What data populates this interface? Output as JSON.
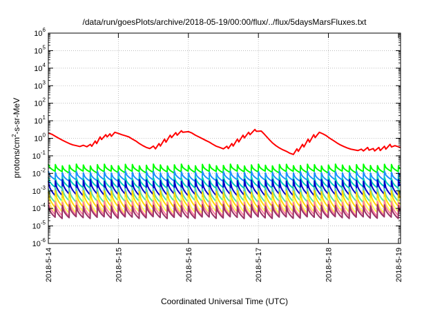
{
  "chart_data": {
    "type": "line",
    "title": "/data/run/goesPlots/archive/2018-05-19/00:00/flux/../flux/5daysMarsFluxes.txt",
    "xlabel": "Coordinated Universal Time (UTC)",
    "ylabel": "protons/cm²-s-sr-MeV",
    "ylabel_parts": {
      "pre": "protons/cm",
      "sup": "2",
      "post": "-s-sr-MeV"
    },
    "x_ticks": [
      "2018-5-14",
      "2018-5-15",
      "2018-5-16",
      "2018-5-17",
      "2018-5-18",
      "2018-5-19"
    ],
    "xlim": [
      0,
      5.03
    ],
    "ylim_log10": [
      -6,
      6
    ],
    "y_ticks_exp": [
      "-6",
      "-5",
      "-4",
      "-3",
      "-2",
      "-1",
      "0",
      "1",
      "2",
      "3",
      "4",
      "5",
      "6"
    ],
    "y_scale": "log",
    "grid": true,
    "x_unit": "days since 2018-5-14",
    "series": [
      {
        "color": "#ff0000",
        "points": [
          [
            0.0,
            2.0
          ],
          [
            0.05,
            1.7
          ],
          [
            0.1,
            1.3
          ],
          [
            0.15,
            1.0
          ],
          [
            0.2,
            0.78
          ],
          [
            0.25,
            0.62
          ],
          [
            0.3,
            0.5
          ],
          [
            0.35,
            0.42
          ],
          [
            0.4,
            0.38
          ],
          [
            0.45,
            0.34
          ],
          [
            0.5,
            0.4
          ],
          [
            0.55,
            0.33
          ],
          [
            0.6,
            0.45
          ],
          [
            0.62,
            0.35
          ],
          [
            0.67,
            0.7
          ],
          [
            0.69,
            0.5
          ],
          [
            0.74,
            1.2
          ],
          [
            0.76,
            0.85
          ],
          [
            0.82,
            1.6
          ],
          [
            0.84,
            1.2
          ],
          [
            0.88,
            1.8
          ],
          [
            0.9,
            1.3
          ],
          [
            0.95,
            2.2
          ],
          [
            1.0,
            1.9
          ],
          [
            1.05,
            1.6
          ],
          [
            1.1,
            1.4
          ],
          [
            1.15,
            1.2
          ],
          [
            1.2,
            0.9
          ],
          [
            1.25,
            0.7
          ],
          [
            1.3,
            0.5
          ],
          [
            1.35,
            0.38
          ],
          [
            1.4,
            0.3
          ],
          [
            1.45,
            0.26
          ],
          [
            1.5,
            0.36
          ],
          [
            1.53,
            0.25
          ],
          [
            1.58,
            0.5
          ],
          [
            1.6,
            0.36
          ],
          [
            1.66,
            0.9
          ],
          [
            1.68,
            0.6
          ],
          [
            1.74,
            1.5
          ],
          [
            1.76,
            1.1
          ],
          [
            1.82,
            2.1
          ],
          [
            1.84,
            1.5
          ],
          [
            1.9,
            2.7
          ],
          [
            1.92,
            2.2
          ],
          [
            2.0,
            2.4
          ],
          [
            2.05,
            2.0
          ],
          [
            2.1,
            1.5
          ],
          [
            2.15,
            1.2
          ],
          [
            2.2,
            0.95
          ],
          [
            2.25,
            0.75
          ],
          [
            2.3,
            0.6
          ],
          [
            2.35,
            0.45
          ],
          [
            2.4,
            0.35
          ],
          [
            2.45,
            0.3
          ],
          [
            2.5,
            0.25
          ],
          [
            2.55,
            0.35
          ],
          [
            2.57,
            0.26
          ],
          [
            2.62,
            0.5
          ],
          [
            2.64,
            0.36
          ],
          [
            2.7,
            0.9
          ],
          [
            2.72,
            0.62
          ],
          [
            2.78,
            1.5
          ],
          [
            2.8,
            1.05
          ],
          [
            2.86,
            2.2
          ],
          [
            2.88,
            1.6
          ],
          [
            2.95,
            3.2
          ],
          [
            2.97,
            2.5
          ],
          [
            3.04,
            2.6
          ],
          [
            3.08,
            1.8
          ],
          [
            3.12,
            1.2
          ],
          [
            3.16,
            0.8
          ],
          [
            3.2,
            0.55
          ],
          [
            3.25,
            0.38
          ],
          [
            3.3,
            0.28
          ],
          [
            3.35,
            0.22
          ],
          [
            3.4,
            0.18
          ],
          [
            3.45,
            0.14
          ],
          [
            3.5,
            0.12
          ],
          [
            3.55,
            0.25
          ],
          [
            3.57,
            0.18
          ],
          [
            3.63,
            0.45
          ],
          [
            3.65,
            0.32
          ],
          [
            3.71,
            0.9
          ],
          [
            3.73,
            0.6
          ],
          [
            3.79,
            1.6
          ],
          [
            3.81,
            1.1
          ],
          [
            3.87,
            2.2
          ],
          [
            3.92,
            1.8
          ],
          [
            3.97,
            1.4
          ],
          [
            4.02,
            1.0
          ],
          [
            4.07,
            0.75
          ],
          [
            4.12,
            0.55
          ],
          [
            4.17,
            0.42
          ],
          [
            4.22,
            0.34
          ],
          [
            4.27,
            0.28
          ],
          [
            4.32,
            0.24
          ],
          [
            4.37,
            0.22
          ],
          [
            4.42,
            0.2
          ],
          [
            4.47,
            0.24
          ],
          [
            4.5,
            0.19
          ],
          [
            4.56,
            0.3
          ],
          [
            4.58,
            0.21
          ],
          [
            4.64,
            0.26
          ],
          [
            4.66,
            0.19
          ],
          [
            4.72,
            0.3
          ],
          [
            4.74,
            0.2
          ],
          [
            4.8,
            0.35
          ],
          [
            4.82,
            0.24
          ],
          [
            4.88,
            0.45
          ],
          [
            4.9,
            0.32
          ],
          [
            4.95,
            0.38
          ],
          [
            5.03,
            0.3
          ]
        ]
      },
      {
        "color": "#00ff00",
        "pattern": "sawtooth",
        "period": 0.1,
        "high": 0.03,
        "low": 0.012
      },
      {
        "color": "#1e90ff",
        "pattern": "sawtooth",
        "period": 0.1,
        "high": 0.012,
        "low": 0.004
      },
      {
        "color": "#00ccbb",
        "pattern": "sawtooth",
        "period": 0.1,
        "high": 0.006,
        "low": 0.0016
      },
      {
        "color": "#0000cd",
        "pattern": "sawtooth",
        "period": 0.1,
        "high": 0.004,
        "low": 0.0006
      },
      {
        "color": "#55ddaa",
        "pattern": "sawtooth",
        "period": 0.1,
        "high": 0.0015,
        "low": 0.00025
      },
      {
        "color": "#ffd700",
        "pattern": "sawtooth",
        "period": 0.1,
        "high": 0.0009,
        "low": 0.00012
      },
      {
        "color": "#ffff55",
        "pattern": "sawtooth",
        "period": 0.1,
        "high": 0.0004,
        "low": 6e-05
      },
      {
        "color": "#ff7fa0",
        "pattern": "sawtooth",
        "period": 0.1,
        "high": 0.00025,
        "low": 4e-05
      },
      {
        "color": "#993366",
        "pattern": "sawtooth",
        "period": 0.1,
        "high": 0.00015,
        "low": 3e-05
      }
    ]
  }
}
